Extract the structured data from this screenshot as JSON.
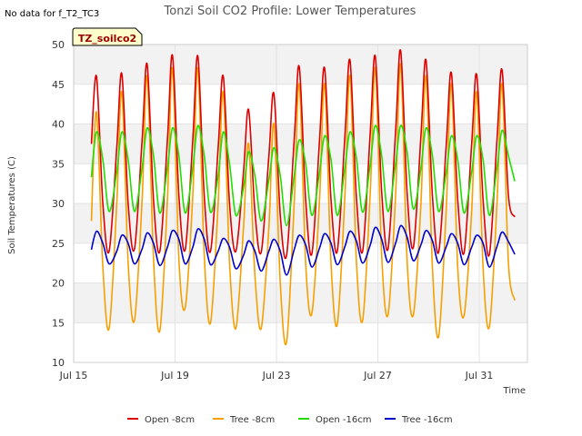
{
  "chart_data": {
    "type": "line",
    "title": "Tonzi Soil CO2 Profile: Lower Temperatures",
    "note": "No data for f_T2_TC3",
    "tag": "TZ_soilco2",
    "xlabel": "Time",
    "ylabel": "Soil Temperatures (C)",
    "ylim": [
      10,
      50
    ],
    "yticks": [
      10,
      15,
      20,
      25,
      30,
      35,
      40,
      45,
      50
    ],
    "xlim": [
      15.0,
      32.9
    ],
    "xticks": [
      {
        "value": 15,
        "label": "Jul 15"
      },
      {
        "value": 19,
        "label": "Jul 19"
      },
      {
        "value": 23,
        "label": "Jul 23"
      },
      {
        "value": 27,
        "label": "Jul 27"
      },
      {
        "value": 31,
        "label": "Jul 31"
      }
    ],
    "grid": true,
    "legend_position": "bottom",
    "x_unit": "day of July",
    "x": [
      15.7,
      15.9,
      16.15,
      16.4,
      16.7,
      16.9,
      17.15,
      17.4,
      17.7,
      17.9,
      18.15,
      18.4,
      18.7,
      18.9,
      19.15,
      19.4,
      19.7,
      19.9,
      20.15,
      20.4,
      20.7,
      20.9,
      21.15,
      21.4,
      21.7,
      21.9,
      22.15,
      22.4,
      22.7,
      22.9,
      23.15,
      23.4,
      23.7,
      23.9,
      24.15,
      24.4,
      24.7,
      24.9,
      25.15,
      25.4,
      25.7,
      25.9,
      26.15,
      26.4,
      26.7,
      26.9,
      27.15,
      27.4,
      27.7,
      27.9,
      28.15,
      28.4,
      28.7,
      28.9,
      29.15,
      29.4,
      29.7,
      29.9,
      30.15,
      30.4,
      30.7,
      30.9,
      31.15,
      31.4,
      31.7,
      31.9,
      32.15,
      32.4
    ],
    "series": [
      {
        "name": "Open -8cm",
        "color": "#dd0000",
        "values": [
          37.5,
          46.0,
          30.0,
          24.0,
          37.0,
          46.3,
          30.0,
          24.3,
          38.0,
          47.5,
          30.5,
          24.0,
          38.0,
          48.6,
          31.0,
          24.2,
          38.0,
          48.5,
          31.0,
          24.0,
          37.0,
          46.0,
          30.0,
          24.0,
          34.0,
          41.8,
          29.0,
          23.9,
          36.0,
          43.8,
          28.5,
          23.5,
          38.0,
          47.2,
          30.5,
          23.7,
          38.0,
          47.0,
          30.5,
          24.0,
          38.5,
          48.0,
          31.0,
          24.0,
          39.0,
          48.5,
          31.5,
          24.3,
          39.0,
          49.2,
          31.5,
          24.5,
          38.5,
          48.0,
          31.0,
          23.9,
          37.5,
          46.4,
          30.5,
          23.8,
          37.5,
          46.2,
          30.5,
          23.6,
          38.0,
          46.8,
          31.0,
          28.3
        ]
      },
      {
        "name": "Tree -8cm",
        "color": "#f5a000",
        "values": [
          27.8,
          41.5,
          22.0,
          14.3,
          30.0,
          44.0,
          22.5,
          15.3,
          30.5,
          46.0,
          23.0,
          14.0,
          30.5,
          47.0,
          23.0,
          16.9,
          31.0,
          47.0,
          23.5,
          15.0,
          30.0,
          44.0,
          22.5,
          14.3,
          27.0,
          37.5,
          21.0,
          14.3,
          27.0,
          40.0,
          20.0,
          12.6,
          30.0,
          45.0,
          22.5,
          16.2,
          30.5,
          45.0,
          22.5,
          14.8,
          31.0,
          46.0,
          23.0,
          15.3,
          31.5,
          47.0,
          23.5,
          16.0,
          31.0,
          47.5,
          23.0,
          16.0,
          30.0,
          46.0,
          22.0,
          13.3,
          29.5,
          45.0,
          22.0,
          15.9,
          29.0,
          44.0,
          22.0,
          14.5,
          30.0,
          45.0,
          22.5,
          17.8
        ]
      },
      {
        "name": "Open -16cm",
        "color": "#22dd00",
        "values": [
          33.3,
          39.0,
          35.5,
          29.0,
          34.0,
          39.0,
          35.5,
          29.0,
          34.5,
          39.5,
          36.0,
          28.8,
          34.5,
          39.5,
          36.0,
          28.8,
          34.5,
          39.8,
          36.0,
          28.9,
          33.5,
          39.0,
          35.0,
          28.5,
          32.0,
          36.5,
          33.5,
          27.8,
          33.0,
          37.0,
          33.5,
          27.2,
          33.5,
          38.0,
          35.0,
          28.5,
          34.0,
          38.5,
          35.5,
          28.5,
          34.5,
          39.0,
          35.8,
          28.9,
          35.0,
          39.8,
          36.0,
          29.0,
          35.0,
          39.8,
          36.5,
          29.3,
          34.5,
          39.5,
          36.0,
          29.0,
          34.0,
          38.5,
          35.5,
          28.8,
          34.0,
          38.5,
          35.5,
          28.5,
          34.5,
          39.2,
          36.0,
          32.8
        ]
      },
      {
        "name": "Tree -16cm",
        "color": "#0000cc",
        "values": [
          24.2,
          26.5,
          25.0,
          22.4,
          24.0,
          26.0,
          25.0,
          22.4,
          24.3,
          26.3,
          25.0,
          22.2,
          24.5,
          26.6,
          25.5,
          22.4,
          24.5,
          26.8,
          25.5,
          22.3,
          24.0,
          25.6,
          24.5,
          21.8,
          23.5,
          25.3,
          24.0,
          21.5,
          24.0,
          25.5,
          24.0,
          21.0,
          24.2,
          26.0,
          24.8,
          22.0,
          24.4,
          26.2,
          25.0,
          22.3,
          24.6,
          26.5,
          25.3,
          22.5,
          24.8,
          27.0,
          25.5,
          22.6,
          25.0,
          27.2,
          25.8,
          22.8,
          24.8,
          26.6,
          25.3,
          22.5,
          24.6,
          26.2,
          25.0,
          22.3,
          24.5,
          26.0,
          25.0,
          22.0,
          24.6,
          26.4,
          25.2,
          23.6
        ]
      }
    ]
  }
}
